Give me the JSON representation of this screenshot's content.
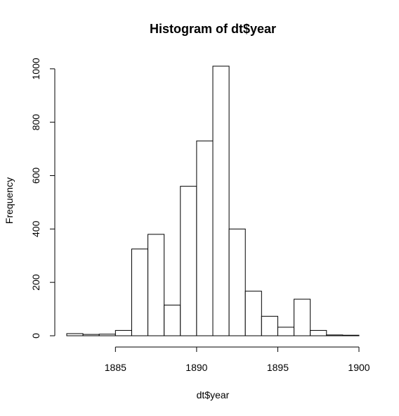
{
  "chart_data": {
    "type": "bar",
    "title": "Histogram of dt$year",
    "xlabel": "dt$year",
    "ylabel": "Frequency",
    "bin_width": 1,
    "bins": [
      {
        "start": 1882,
        "end": 1883,
        "count": 8
      },
      {
        "start": 1883,
        "end": 1884,
        "count": 5
      },
      {
        "start": 1884,
        "end": 1885,
        "count": 6
      },
      {
        "start": 1885,
        "end": 1886,
        "count": 20
      },
      {
        "start": 1886,
        "end": 1887,
        "count": 325
      },
      {
        "start": 1887,
        "end": 1888,
        "count": 380
      },
      {
        "start": 1888,
        "end": 1889,
        "count": 115
      },
      {
        "start": 1889,
        "end": 1890,
        "count": 560
      },
      {
        "start": 1890,
        "end": 1891,
        "count": 730
      },
      {
        "start": 1891,
        "end": 1892,
        "count": 1010
      },
      {
        "start": 1892,
        "end": 1893,
        "count": 400
      },
      {
        "start": 1893,
        "end": 1894,
        "count": 167
      },
      {
        "start": 1894,
        "end": 1895,
        "count": 73
      },
      {
        "start": 1895,
        "end": 1896,
        "count": 32
      },
      {
        "start": 1896,
        "end": 1897,
        "count": 137
      },
      {
        "start": 1897,
        "end": 1898,
        "count": 20
      },
      {
        "start": 1898,
        "end": 1899,
        "count": 3
      },
      {
        "start": 1899,
        "end": 1900,
        "count": 2
      }
    ],
    "xlim": [
      1882,
      1900
    ],
    "ylim": [
      0,
      1010
    ],
    "x_ticks": [
      1885,
      1890,
      1895,
      1900
    ],
    "y_ticks": [
      0,
      200,
      400,
      600,
      800,
      1000
    ],
    "grid": false
  }
}
